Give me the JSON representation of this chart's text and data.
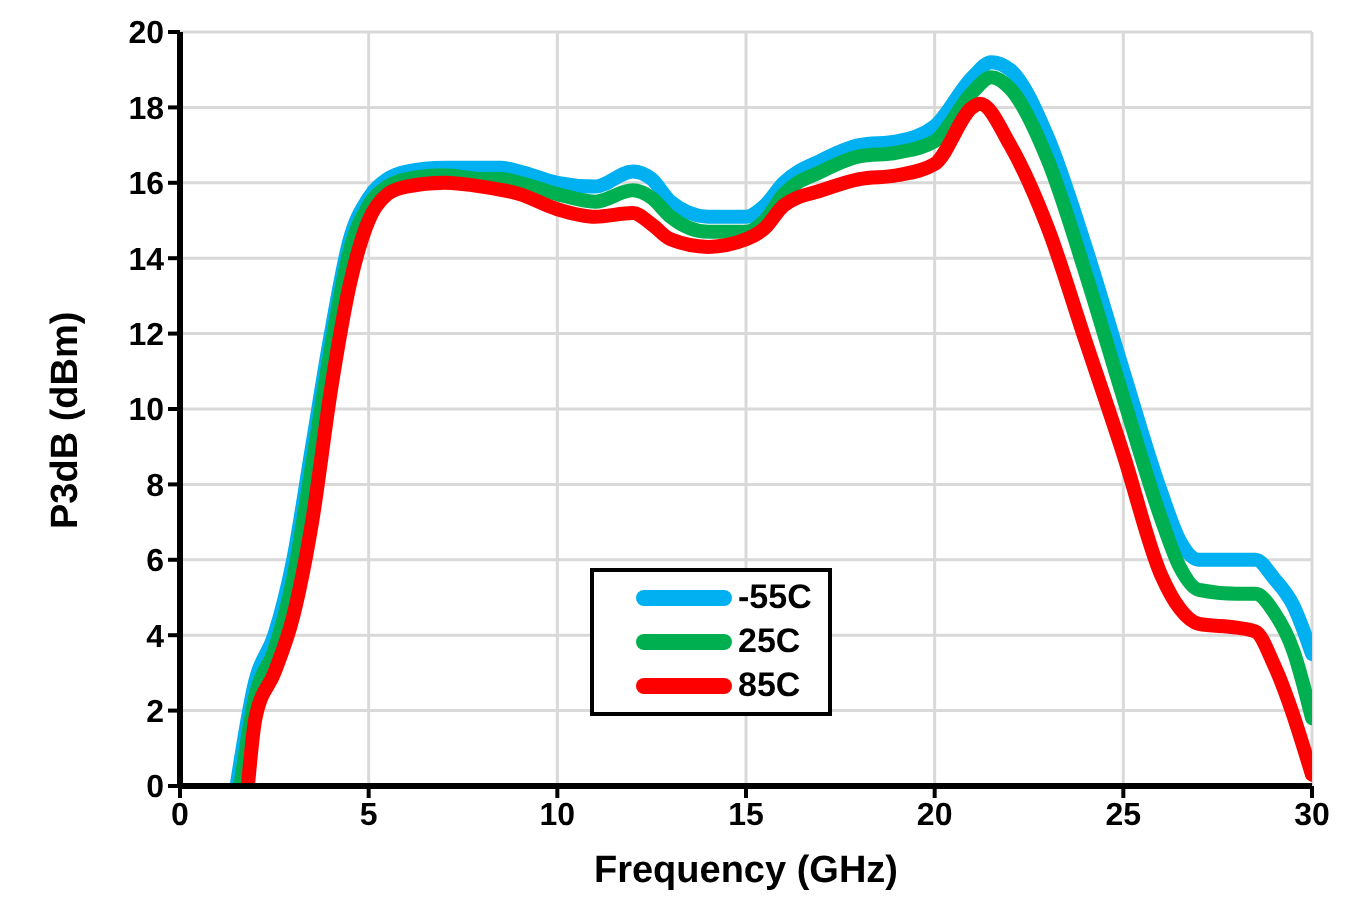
{
  "chart_data": {
    "type": "line",
    "xlabel": "Frequency (GHz)",
    "ylabel": "P3dB (dBm)",
    "xlim": [
      0,
      30
    ],
    "xticks": [
      0,
      5,
      10,
      15,
      20,
      25,
      30
    ],
    "ylim": [
      0,
      20
    ],
    "yticks": [
      0,
      2,
      4,
      6,
      8,
      10,
      12,
      14,
      16,
      18,
      20
    ],
    "grid": true,
    "legend": "bottom",
    "marker": "none",
    "line_style": "solid",
    "series": [
      {
        "name": "-55C",
        "color": "#00b0f0",
        "x": [
          1.5,
          2,
          2.5,
          3,
          3.5,
          4,
          4.5,
          5,
          5.5,
          6,
          7,
          8,
          8.5,
          9,
          10,
          11,
          12,
          12.5,
          13,
          14,
          15,
          15.5,
          16,
          17,
          18,
          19,
          20,
          21,
          21.5,
          22,
          23,
          24,
          25,
          26,
          26.5,
          27,
          28,
          28.5,
          29,
          29.5,
          30
        ],
        "values": [
          0,
          2.8,
          4,
          6,
          9,
          12,
          14.5,
          15.6,
          16.1,
          16.3,
          16.4,
          16.4,
          16.4,
          16.3,
          16,
          15.9,
          16.3,
          16.1,
          15.5,
          15.1,
          15.1,
          15.4,
          16,
          16.6,
          17,
          17.1,
          17.5,
          18.8,
          19.2,
          19,
          17.2,
          14.3,
          11,
          7.8,
          6.5,
          6,
          6,
          6,
          5.5,
          4.8,
          3.5
        ]
      },
      {
        "name": "25C",
        "color": "#00b050",
        "x": [
          1.6,
          2,
          2.5,
          3,
          3.5,
          4,
          4.5,
          5,
          5.5,
          6,
          7,
          8,
          8.5,
          9,
          10,
          11,
          12,
          12.5,
          13,
          14,
          15,
          15.5,
          16,
          17,
          18,
          19,
          20,
          21,
          21.5,
          22,
          23,
          24,
          25,
          26,
          26.5,
          27,
          28,
          28.5,
          29,
          29.5,
          30
        ],
        "values": [
          0,
          2.4,
          3.6,
          5.5,
          8.5,
          11.6,
          14.2,
          15.4,
          15.9,
          16.1,
          16.2,
          16.1,
          16.1,
          16,
          15.7,
          15.5,
          15.8,
          15.6,
          15.1,
          14.7,
          14.7,
          15,
          15.7,
          16.3,
          16.7,
          16.8,
          17.1,
          18.4,
          18.8,
          18.5,
          16.6,
          13.6,
          10.3,
          7.1,
          5.8,
          5.2,
          5.1,
          5.1,
          4.6,
          3.6,
          1.8
        ]
      },
      {
        "name": "85C",
        "color": "#ff0000",
        "x": [
          1.8,
          2,
          2.5,
          3,
          3.5,
          4,
          4.5,
          5,
          5.5,
          6,
          7,
          8,
          9,
          10,
          11,
          12,
          12.5,
          13,
          14,
          15,
          15.5,
          16,
          17,
          18,
          19,
          20,
          21,
          21.2,
          22,
          23,
          24,
          25,
          26,
          26.5,
          27,
          28,
          28.5,
          29,
          30
        ],
        "values": [
          0,
          1.8,
          3,
          4.5,
          7,
          10.5,
          13.3,
          15,
          15.7,
          15.9,
          16,
          15.9,
          15.7,
          15.3,
          15.1,
          15.2,
          14.9,
          14.5,
          14.3,
          14.5,
          14.8,
          15.4,
          15.8,
          16.1,
          16.2,
          16.5,
          18,
          18.1,
          17,
          14.8,
          11.8,
          8.8,
          5.6,
          4.7,
          4.3,
          4.2,
          4.1,
          3.2,
          0.3
        ]
      }
    ]
  }
}
